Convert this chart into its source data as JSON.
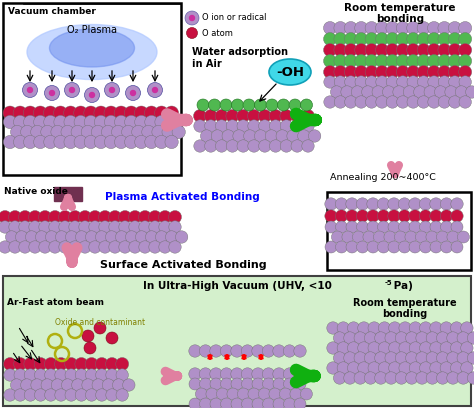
{
  "bg_color": "#ffffff",
  "light_green_bg": "#d4f0cc",
  "purple_color": "#b090c8",
  "red_color": "#c81040",
  "green_color": "#50b850",
  "pink_arrow": "#e080a0",
  "green_arrow": "#10b010",
  "cyan_oh": "#40d8e8",
  "olive_circle": "#b0b010",
  "title_vacuum": "Vacuum chamber",
  "title_o2": "O₂ Plasma",
  "legend_ion": "O ion or radical",
  "legend_atom": "O atom",
  "text_water": "Water adsorption",
  "text_in_air": "in Air",
  "text_room_temp1": "Room temperature",
  "text_bonding": "bonding",
  "text_native_oxide": "Native oxide",
  "text_plasma_activated": "Plasma Activated Bonding",
  "text_surface_activated": "Surface Activated Bonding",
  "text_annealing": "Annealing 200~400°C",
  "text_uhv_title": "In Ultra-High Vacuum (UHV, <10",
  "text_uhv_sup": "-5",
  "text_uhv_pa": " Pa)",
  "text_ar_beam": "Ar-Fast atom beam",
  "text_oxide_contaminant": "Oxide and contaminant",
  "text_room_temp2": "Room temperature",
  "text_bonding2": "bonding"
}
